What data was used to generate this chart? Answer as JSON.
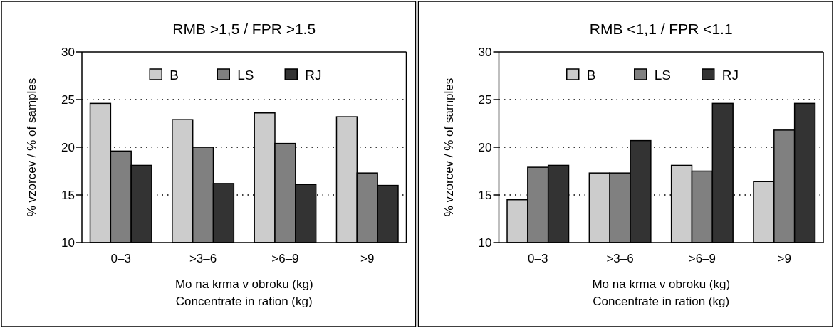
{
  "chart_data": [
    {
      "type": "bar",
      "title": "RMB >1,5 / FPR >1.5",
      "xlabel": "Mo na krma v obroku (kg)\nConcentrate in ration (kg)",
      "ylabel": "% vzorcev / % of samples",
      "categories": [
        "0–3",
        ">3–6",
        ">6–9",
        ">9"
      ],
      "series": [
        {
          "name": "B",
          "color": "#cccccc",
          "values": [
            24.6,
            22.9,
            23.6,
            23.2
          ]
        },
        {
          "name": "LS",
          "color": "#808080",
          "values": [
            19.6,
            20.0,
            20.4,
            17.3
          ]
        },
        {
          "name": "RJ",
          "color": "#333333",
          "values": [
            18.1,
            16.2,
            16.1,
            16.0
          ]
        }
      ],
      "ylim": [
        10,
        30
      ],
      "yticks": [
        10,
        15,
        20,
        25,
        30
      ],
      "grid": "y",
      "legend": "top"
    },
    {
      "type": "bar",
      "title": "RMB <1,1 / FPR <1.1",
      "xlabel": "Mo na krma v obroku (kg)\nConcentrate in ration (kg)",
      "ylabel": "% vzorcev / % of samples",
      "categories": [
        "0–3",
        ">3–6",
        ">6–9",
        ">9"
      ],
      "series": [
        {
          "name": "B",
          "color": "#cccccc",
          "values": [
            14.5,
            17.3,
            18.1,
            16.4
          ]
        },
        {
          "name": "LS",
          "color": "#808080",
          "values": [
            17.9,
            17.3,
            17.5,
            21.8
          ]
        },
        {
          "name": "RJ",
          "color": "#333333",
          "values": [
            18.1,
            20.7,
            24.6,
            24.6
          ]
        }
      ],
      "ylim": [
        10,
        30
      ],
      "yticks": [
        10,
        15,
        20,
        25,
        30
      ],
      "grid": "y",
      "legend": "top"
    }
  ]
}
